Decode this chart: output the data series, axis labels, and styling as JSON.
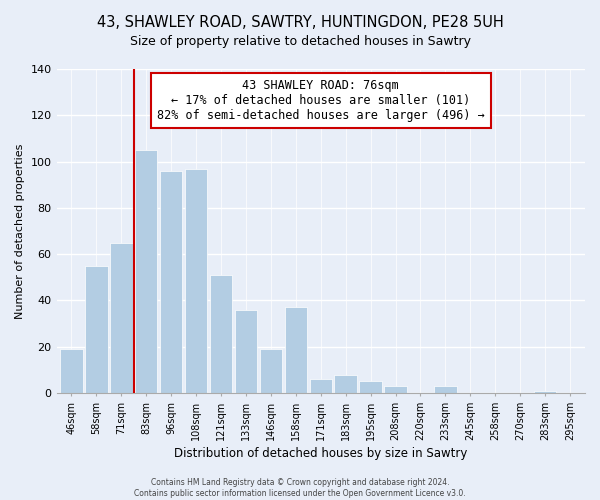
{
  "title1": "43, SHAWLEY ROAD, SAWTRY, HUNTINGDON, PE28 5UH",
  "title2": "Size of property relative to detached houses in Sawtry",
  "xlabel": "Distribution of detached houses by size in Sawtry",
  "ylabel": "Number of detached properties",
  "bar_labels": [
    "46sqm",
    "58sqm",
    "71sqm",
    "83sqm",
    "96sqm",
    "108sqm",
    "121sqm",
    "133sqm",
    "146sqm",
    "158sqm",
    "171sqm",
    "183sqm",
    "195sqm",
    "208sqm",
    "220sqm",
    "233sqm",
    "245sqm",
    "258sqm",
    "270sqm",
    "283sqm",
    "295sqm"
  ],
  "bar_values": [
    19,
    55,
    65,
    105,
    96,
    97,
    51,
    36,
    19,
    37,
    6,
    8,
    5,
    3,
    0,
    3,
    0,
    0,
    0,
    1,
    0
  ],
  "bar_color": "#b3cde3",
  "annotation_title": "43 SHAWLEY ROAD: 76sqm",
  "annotation_line1": "← 17% of detached houses are smaller (101)",
  "annotation_line2": "82% of semi-detached houses are larger (496) →",
  "annotation_box_color": "#ffffff",
  "annotation_box_edge": "#cc0000",
  "vline_color": "#cc0000",
  "ylim": [
    0,
    140
  ],
  "yticks": [
    0,
    20,
    40,
    60,
    80,
    100,
    120,
    140
  ],
  "footer1": "Contains HM Land Registry data © Crown copyright and database right 2024.",
  "footer2": "Contains public sector information licensed under the Open Government Licence v3.0.",
  "bg_color": "#e8eef8",
  "title1_fontsize": 10.5,
  "title2_fontsize": 9
}
